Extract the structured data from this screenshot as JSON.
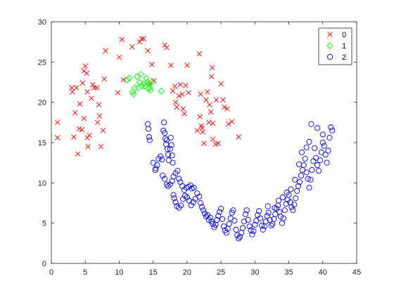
{
  "chart_data": {
    "type": "scatter",
    "title": "",
    "xlabel": "",
    "ylabel": "",
    "xlim": [
      0,
      45
    ],
    "ylim": [
      0,
      30
    ],
    "x_ticks": [
      0,
      5,
      10,
      15,
      20,
      25,
      30,
      35,
      40,
      45
    ],
    "y_ticks": [
      0,
      5,
      10,
      15,
      20,
      25,
      30
    ],
    "grid": false,
    "legend_position": "top-right",
    "series": [
      {
        "name": "0",
        "marker": "x",
        "color": "#ff0000",
        "points": [
          [
            0.9,
            17.5
          ],
          [
            0.9,
            15.6
          ],
          [
            3.0,
            21.8
          ],
          [
            3.1,
            21.3
          ],
          [
            3.3,
            15.7
          ],
          [
            3.5,
            18.7
          ],
          [
            3.7,
            21.8
          ],
          [
            3.9,
            13.6
          ],
          [
            4.1,
            16.7
          ],
          [
            4.2,
            19.8
          ],
          [
            4.5,
            16.6
          ],
          [
            4.6,
            22.4
          ],
          [
            4.8,
            23.9
          ],
          [
            4.8,
            18.0
          ],
          [
            5.0,
            24.5
          ],
          [
            5.2,
            23.6
          ],
          [
            5.3,
            15.6
          ],
          [
            5.3,
            21.3
          ],
          [
            5.4,
            14.5
          ],
          [
            5.6,
            15.9
          ],
          [
            5.9,
            20.5
          ],
          [
            6.1,
            22.2
          ],
          [
            6.3,
            21.8
          ],
          [
            6.7,
            21.8
          ],
          [
            6.8,
            17.5
          ],
          [
            7.0,
            19.7
          ],
          [
            7.1,
            18.3
          ],
          [
            7.3,
            14.5
          ],
          [
            7.6,
            16.5
          ],
          [
            7.8,
            22.9
          ],
          [
            8.0,
            26.4
          ],
          [
            9.8,
            21.2
          ],
          [
            10.0,
            25.6
          ],
          [
            10.4,
            27.8
          ],
          [
            10.6,
            22.8
          ],
          [
            11.9,
            26.9
          ],
          [
            13.0,
            27.5
          ],
          [
            13.3,
            27.9
          ],
          [
            13.6,
            27.9
          ],
          [
            14.2,
            26.4
          ],
          [
            14.5,
            22.2
          ],
          [
            14.8,
            24.7
          ],
          [
            15.1,
            22.7
          ],
          [
            16.7,
            27.1
          ],
          [
            17.0,
            26.8
          ],
          [
            17.6,
            24.6
          ],
          [
            17.9,
            21.4
          ],
          [
            18.2,
            22.0
          ],
          [
            18.3,
            20.0
          ],
          [
            18.5,
            19.4
          ],
          [
            18.8,
            20.8
          ],
          [
            19.0,
            22.2
          ],
          [
            19.3,
            21.0
          ],
          [
            19.4,
            19.2
          ],
          [
            19.6,
            18.6
          ],
          [
            19.8,
            22.1
          ],
          [
            20.0,
            24.6
          ],
          [
            20.2,
            21.2
          ],
          [
            21.5,
            16.5
          ],
          [
            21.8,
            26.0
          ],
          [
            21.9,
            18.2
          ],
          [
            22.0,
            21.0
          ],
          [
            22.1,
            17.1
          ],
          [
            22.2,
            16.8
          ],
          [
            22.3,
            16.3
          ],
          [
            22.5,
            14.9
          ],
          [
            22.8,
            20.3
          ],
          [
            23.0,
            21.3
          ],
          [
            23.2,
            17.5
          ],
          [
            23.3,
            19.7
          ],
          [
            23.5,
            18.8
          ],
          [
            23.6,
            23.2
          ],
          [
            23.7,
            24.3
          ],
          [
            23.8,
            15.4
          ],
          [
            23.8,
            17.4
          ],
          [
            24.2,
            14.8
          ],
          [
            24.3,
            20.3
          ],
          [
            24.6,
            14.9
          ],
          [
            25.0,
            22.3
          ],
          [
            25.3,
            20.3
          ],
          [
            25.5,
            19.4
          ],
          [
            25.9,
            19.2
          ],
          [
            26.1,
            17.3
          ],
          [
            26.6,
            17.6
          ],
          [
            27.6,
            15.7
          ]
        ]
      },
      {
        "name": "1",
        "marker": "diamond",
        "color": "#00ff00",
        "points": [
          [
            11.2,
            22.8
          ],
          [
            11.5,
            23.0
          ],
          [
            12.0,
            21.3
          ],
          [
            12.1,
            21.0
          ],
          [
            12.3,
            21.8
          ],
          [
            12.6,
            23.2
          ],
          [
            12.8,
            21.8
          ],
          [
            13.0,
            22.5
          ],
          [
            13.2,
            23.5
          ],
          [
            13.4,
            22.0
          ],
          [
            13.6,
            22.3
          ],
          [
            13.8,
            22.0
          ],
          [
            14.0,
            23.0
          ],
          [
            14.2,
            22.5
          ],
          [
            14.3,
            21.7
          ],
          [
            14.4,
            22.3
          ],
          [
            14.5,
            21.8
          ],
          [
            14.6,
            21.5
          ],
          [
            14.8,
            22.5
          ],
          [
            16.2,
            21.4
          ]
        ]
      },
      {
        "name": "2",
        "marker": "circle",
        "color": "#0000ff",
        "points": [
          [
            14.2,
            17.3
          ],
          [
            14.3,
            16.7
          ],
          [
            14.4,
            15.7
          ],
          [
            14.5,
            15.3
          ],
          [
            15.0,
            12.5
          ],
          [
            15.3,
            11.6
          ],
          [
            15.4,
            11.8
          ],
          [
            15.6,
            12.2
          ],
          [
            15.8,
            13.0
          ],
          [
            16.1,
            13.3
          ],
          [
            16.3,
            12.9
          ],
          [
            16.5,
            16.5
          ],
          [
            16.6,
            17.5
          ],
          [
            16.7,
            16.2
          ],
          [
            16.8,
            15.5
          ],
          [
            16.9,
            14.8
          ],
          [
            17.0,
            15.3
          ],
          [
            17.1,
            14.2
          ],
          [
            17.2,
            13.5
          ],
          [
            17.3,
            12.8
          ],
          [
            17.5,
            14.2
          ],
          [
            17.6,
            15.6
          ],
          [
            17.7,
            14.7
          ],
          [
            17.8,
            13.4
          ],
          [
            17.9,
            12.5
          ],
          [
            16.4,
            10.9
          ],
          [
            16.7,
            10.5
          ],
          [
            17.0,
            9.8
          ],
          [
            17.2,
            9.6
          ],
          [
            17.5,
            9.8
          ],
          [
            17.8,
            10.2
          ],
          [
            18.0,
            10.8
          ],
          [
            18.3,
            11.2
          ],
          [
            18.6,
            11.5
          ],
          [
            18.8,
            10.5
          ],
          [
            19.0,
            10.1
          ],
          [
            19.3,
            9.6
          ],
          [
            19.6,
            9.1
          ],
          [
            19.9,
            9.4
          ],
          [
            20.2,
            9.5
          ],
          [
            20.5,
            9.7
          ],
          [
            20.7,
            9.3
          ],
          [
            21.0,
            9.4
          ],
          [
            18.0,
            8.5
          ],
          [
            18.1,
            8.1
          ],
          [
            18.3,
            7.6
          ],
          [
            18.5,
            7.1
          ],
          [
            18.8,
            6.9
          ],
          [
            19.1,
            7.2
          ],
          [
            19.4,
            8.0
          ],
          [
            19.7,
            8.4
          ],
          [
            20.0,
            8.2
          ],
          [
            20.3,
            7.8
          ],
          [
            20.6,
            7.2
          ],
          [
            20.9,
            7.6
          ],
          [
            21.2,
            8.0
          ],
          [
            21.5,
            8.7
          ],
          [
            21.8,
            8.3
          ],
          [
            22.0,
            7.5
          ],
          [
            22.2,
            7.0
          ],
          [
            22.4,
            6.6
          ],
          [
            22.6,
            6.2
          ],
          [
            22.8,
            5.8
          ],
          [
            23.0,
            6.0
          ],
          [
            23.2,
            5.4
          ],
          [
            23.4,
            5.7
          ],
          [
            23.6,
            5.2
          ],
          [
            23.8,
            4.9
          ],
          [
            24.0,
            4.5
          ],
          [
            24.2,
            4.8
          ],
          [
            24.4,
            5.4
          ],
          [
            24.6,
            5.9
          ],
          [
            24.8,
            6.4
          ],
          [
            25.0,
            6.8
          ],
          [
            25.2,
            5.5
          ],
          [
            25.4,
            4.6
          ],
          [
            25.6,
            4.1
          ],
          [
            25.8,
            3.8
          ],
          [
            26.0,
            4.3
          ],
          [
            26.2,
            4.9
          ],
          [
            26.4,
            5.6
          ],
          [
            26.6,
            6.3
          ],
          [
            26.8,
            6.6
          ],
          [
            27.0,
            5.3
          ],
          [
            27.2,
            4.2
          ],
          [
            27.4,
            3.5
          ],
          [
            27.6,
            3.1
          ],
          [
            27.8,
            3.3
          ],
          [
            28.0,
            3.8
          ],
          [
            28.2,
            4.4
          ],
          [
            28.4,
            5.2
          ],
          [
            28.6,
            6.1
          ],
          [
            28.8,
            6.6
          ],
          [
            29.0,
            5.4
          ],
          [
            29.2,
            4.6
          ],
          [
            29.4,
            4.1
          ],
          [
            29.6,
            3.6
          ],
          [
            29.8,
            4.0
          ],
          [
            30.0,
            4.8
          ],
          [
            30.2,
            5.3
          ],
          [
            30.4,
            6.0
          ],
          [
            30.6,
            6.5
          ],
          [
            30.8,
            5.6
          ],
          [
            31.0,
            4.7
          ],
          [
            31.2,
            4.2
          ],
          [
            31.4,
            4.6
          ],
          [
            31.6,
            5.2
          ],
          [
            31.8,
            5.9
          ],
          [
            32.0,
            6.3
          ],
          [
            32.2,
            5.4
          ],
          [
            32.4,
            4.7
          ],
          [
            32.6,
            4.9
          ],
          [
            32.8,
            5.5
          ],
          [
            33.0,
            6.1
          ],
          [
            33.2,
            6.8
          ],
          [
            33.4,
            7.2
          ],
          [
            33.6,
            6.4
          ],
          [
            33.8,
            5.8
          ],
          [
            34.0,
            5.0
          ],
          [
            34.2,
            5.6
          ],
          [
            34.4,
            6.6
          ],
          [
            34.6,
            7.4
          ],
          [
            34.8,
            7.9
          ],
          [
            35.0,
            8.5
          ],
          [
            35.2,
            7.6
          ],
          [
            35.4,
            7.0
          ],
          [
            35.6,
            6.6
          ],
          [
            35.8,
            7.3
          ],
          [
            36.0,
            8.1
          ],
          [
            36.2,
            9.0
          ],
          [
            36.4,
            9.6
          ],
          [
            36.6,
            10.1
          ],
          [
            36.8,
            10.9
          ],
          [
            37.0,
            11.6
          ],
          [
            37.2,
            12.2
          ],
          [
            37.4,
            13.0
          ],
          [
            37.6,
            11.3
          ],
          [
            37.8,
            10.5
          ],
          [
            38.0,
            9.4
          ],
          [
            38.2,
            10.4
          ],
          [
            38.4,
            11.6
          ],
          [
            38.6,
            12.7
          ],
          [
            38.8,
            14.3
          ],
          [
            39.0,
            13.1
          ],
          [
            39.2,
            12.2
          ],
          [
            39.4,
            11.5
          ],
          [
            39.6,
            12.8
          ],
          [
            39.8,
            13.8
          ],
          [
            40.0,
            15.0
          ],
          [
            40.2,
            14.6
          ],
          [
            40.4,
            13.5
          ],
          [
            40.6,
            12.5
          ],
          [
            40.8,
            14.0
          ],
          [
            41.0,
            15.6
          ],
          [
            41.2,
            16.9
          ],
          [
            41.4,
            16.5
          ],
          [
            40.0,
            16.0
          ],
          [
            39.2,
            16.8
          ],
          [
            38.3,
            17.3
          ],
          [
            38.0,
            15.1
          ],
          [
            37.6,
            14.4
          ],
          [
            36.9,
            13.8
          ],
          [
            36.5,
            12.3
          ],
          [
            35.9,
            10.4
          ],
          [
            35.3,
            9.2
          ],
          [
            34.7,
            8.8
          ],
          [
            34.1,
            8.2
          ],
          [
            33.5,
            7.8
          ],
          [
            32.9,
            6.9
          ],
          [
            31.9,
            7.1
          ]
        ]
      }
    ]
  }
}
